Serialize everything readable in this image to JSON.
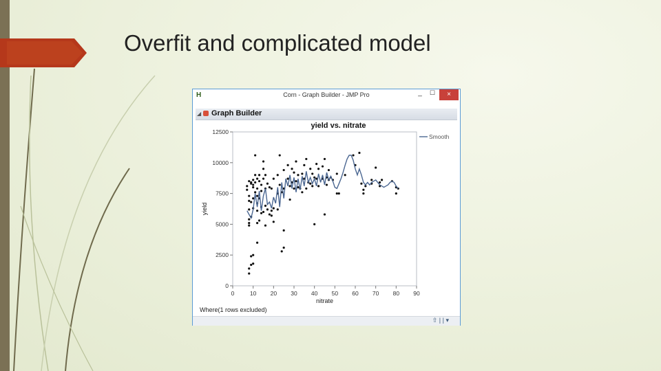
{
  "slide": {
    "title": "Overfit and complicated model"
  },
  "window": {
    "app_icon": "H",
    "title": "Corn - Graph Builder - JMP Pro",
    "min_label": "_",
    "max_label": "☐",
    "close_label": "×"
  },
  "panel": {
    "collapse_icon": "◢",
    "label": "Graph Builder"
  },
  "footer": {
    "where": "Where(1 rows excluded)",
    "status_icons": "⇧ | | ▾"
  },
  "colors": {
    "accent": "#b5381b",
    "window_border": "#5b9bd5",
    "smooth_line": "#4a6691",
    "points": "#111111"
  },
  "chart_data": {
    "type": "scatter",
    "title": "yield vs. nitrate",
    "xlabel": "nitrate",
    "ylabel": "yield",
    "xlim": [
      0,
      90
    ],
    "ylim": [
      0,
      12500
    ],
    "xticks": [
      0,
      10,
      20,
      30,
      40,
      50,
      60,
      70,
      80,
      90
    ],
    "yticks": [
      0,
      2500,
      5000,
      7500,
      10000,
      12500
    ],
    "legend": {
      "placement": "right",
      "entries": [
        "Smooth"
      ]
    },
    "grid": false,
    "points": [
      [
        7,
        8100
      ],
      [
        7,
        7800
      ],
      [
        8,
        8500
      ],
      [
        8,
        7300
      ],
      [
        8,
        6900
      ],
      [
        8,
        6200
      ],
      [
        8,
        5400
      ],
      [
        8,
        5100
      ],
      [
        8,
        4900
      ],
      [
        8,
        1000
      ],
      [
        8,
        1400
      ],
      [
        9,
        8400
      ],
      [
        9,
        8300
      ],
      [
        9,
        2400
      ],
      [
        9,
        1700
      ],
      [
        9,
        6800
      ],
      [
        9,
        5600
      ],
      [
        10,
        8600
      ],
      [
        10,
        8200
      ],
      [
        10,
        8000
      ],
      [
        10,
        7100
      ],
      [
        10,
        6300
      ],
      [
        10,
        2500
      ],
      [
        10,
        1800
      ],
      [
        11,
        8400
      ],
      [
        11,
        7600
      ],
      [
        11,
        10600
      ],
      [
        11,
        9000
      ],
      [
        12,
        8700
      ],
      [
        12,
        7900
      ],
      [
        12,
        7300
      ],
      [
        12,
        6700
      ],
      [
        12,
        6100
      ],
      [
        12,
        5100
      ],
      [
        12,
        3500
      ],
      [
        13,
        9000
      ],
      [
        13,
        8500
      ],
      [
        13,
        7100
      ],
      [
        13,
        5300
      ],
      [
        14,
        8200
      ],
      [
        14,
        7700
      ],
      [
        14,
        6400
      ],
      [
        14,
        5900
      ],
      [
        15,
        9500
      ],
      [
        15,
        8700
      ],
      [
        15,
        10100
      ],
      [
        15,
        6000
      ],
      [
        16,
        9000
      ],
      [
        16,
        7900
      ],
      [
        16,
        6500
      ],
      [
        16,
        4900
      ],
      [
        17,
        8300
      ],
      [
        17,
        6200
      ],
      [
        18,
        8000
      ],
      [
        18,
        5800
      ],
      [
        19,
        7900
      ],
      [
        19,
        6100
      ],
      [
        19,
        5700
      ],
      [
        20,
        8700
      ],
      [
        20,
        6300
      ],
      [
        20,
        5200
      ],
      [
        22,
        9000
      ],
      [
        22,
        7500
      ],
      [
        22,
        6200
      ],
      [
        23,
        10600
      ],
      [
        23,
        8200
      ],
      [
        24,
        7600
      ],
      [
        24,
        2800
      ],
      [
        25,
        9400
      ],
      [
        25,
        7900
      ],
      [
        25,
        4500
      ],
      [
        25,
        3100
      ],
      [
        27,
        9800
      ],
      [
        27,
        8700
      ],
      [
        28,
        8100
      ],
      [
        28,
        7000
      ],
      [
        29,
        9500
      ],
      [
        29,
        8400
      ],
      [
        30,
        9200
      ],
      [
        30,
        7900
      ],
      [
        31,
        10100
      ],
      [
        31,
        8500
      ],
      [
        32,
        9000
      ],
      [
        32,
        8000
      ],
      [
        33,
        7900
      ],
      [
        34,
        9100
      ],
      [
        34,
        7600
      ],
      [
        35,
        9800
      ],
      [
        35,
        8700
      ],
      [
        36,
        10300
      ],
      [
        36,
        7900
      ],
      [
        37,
        8400
      ],
      [
        38,
        9500
      ],
      [
        38,
        8300
      ],
      [
        39,
        9100
      ],
      [
        39,
        8100
      ],
      [
        40,
        8800
      ],
      [
        40,
        5000
      ],
      [
        41,
        9900
      ],
      [
        41,
        8700
      ],
      [
        42,
        9500
      ],
      [
        42,
        8100
      ],
      [
        44,
        9700
      ],
      [
        44,
        8700
      ],
      [
        45,
        10300
      ],
      [
        45,
        5800
      ],
      [
        46,
        8800
      ],
      [
        46,
        8200
      ],
      [
        47,
        9400
      ],
      [
        47,
        8600
      ],
      [
        48,
        8800
      ],
      [
        49,
        8600
      ],
      [
        51,
        9100
      ],
      [
        51,
        7500
      ],
      [
        52,
        7500
      ],
      [
        55,
        9000
      ],
      [
        59,
        10600
      ],
      [
        60,
        9800
      ],
      [
        62,
        10800
      ],
      [
        63,
        8300
      ],
      [
        64,
        7800
      ],
      [
        64,
        7500
      ],
      [
        65,
        8100
      ],
      [
        68,
        8600
      ],
      [
        68,
        8300
      ],
      [
        70,
        9600
      ],
      [
        72,
        8400
      ],
      [
        72,
        8100
      ],
      [
        73,
        8600
      ],
      [
        78,
        8500
      ],
      [
        80,
        8000
      ],
      [
        80,
        7500
      ],
      [
        81,
        7900
      ]
    ],
    "smooth": [
      [
        7,
        6100
      ],
      [
        8,
        5800
      ],
      [
        9,
        5500
      ],
      [
        10,
        6200
      ],
      [
        11,
        7500
      ],
      [
        12,
        6400
      ],
      [
        13,
        7700
      ],
      [
        14,
        6100
      ],
      [
        15,
        7300
      ],
      [
        16,
        7900
      ],
      [
        17,
        6600
      ],
      [
        18,
        6800
      ],
      [
        19,
        6300
      ],
      [
        20,
        7200
      ],
      [
        21,
        6700
      ],
      [
        22,
        8000
      ],
      [
        23,
        6400
      ],
      [
        24,
        8400
      ],
      [
        25,
        7100
      ],
      [
        26,
        8700
      ],
      [
        27,
        8100
      ],
      [
        28,
        9000
      ],
      [
        29,
        7900
      ],
      [
        30,
        8800
      ],
      [
        31,
        7600
      ],
      [
        32,
        8700
      ],
      [
        33,
        7800
      ],
      [
        34,
        8900
      ],
      [
        35,
        8100
      ],
      [
        36,
        9300
      ],
      [
        37,
        8400
      ],
      [
        38,
        8800
      ],
      [
        39,
        8300
      ],
      [
        40,
        8700
      ],
      [
        41,
        8100
      ],
      [
        42,
        9100
      ],
      [
        43,
        8400
      ],
      [
        44,
        9000
      ],
      [
        45,
        8200
      ],
      [
        46,
        9200
      ],
      [
        47,
        8600
      ],
      [
        48,
        8900
      ],
      [
        49,
        8500
      ],
      [
        50,
        8000
      ],
      [
        51,
        7900
      ],
      [
        52,
        8300
      ],
      [
        53,
        8700
      ],
      [
        54,
        9200
      ],
      [
        55,
        9800
      ],
      [
        56,
        10300
      ],
      [
        57,
        10600
      ],
      [
        58,
        10600
      ],
      [
        59,
        10200
      ],
      [
        60,
        9500
      ],
      [
        61,
        9000
      ],
      [
        62,
        9500
      ],
      [
        63,
        9000
      ],
      [
        64,
        8400
      ],
      [
        65,
        8200
      ],
      [
        66,
        8400
      ],
      [
        67,
        8200
      ],
      [
        68,
        8400
      ],
      [
        69,
        8500
      ],
      [
        70,
        8600
      ],
      [
        71,
        8400
      ],
      [
        72,
        8200
      ],
      [
        73,
        8100
      ],
      [
        74,
        8000
      ],
      [
        75,
        8100
      ],
      [
        76,
        8200
      ],
      [
        77,
        8400
      ],
      [
        78,
        8500
      ],
      [
        79,
        8400
      ],
      [
        80,
        8100
      ],
      [
        81,
        7900
      ]
    ]
  }
}
